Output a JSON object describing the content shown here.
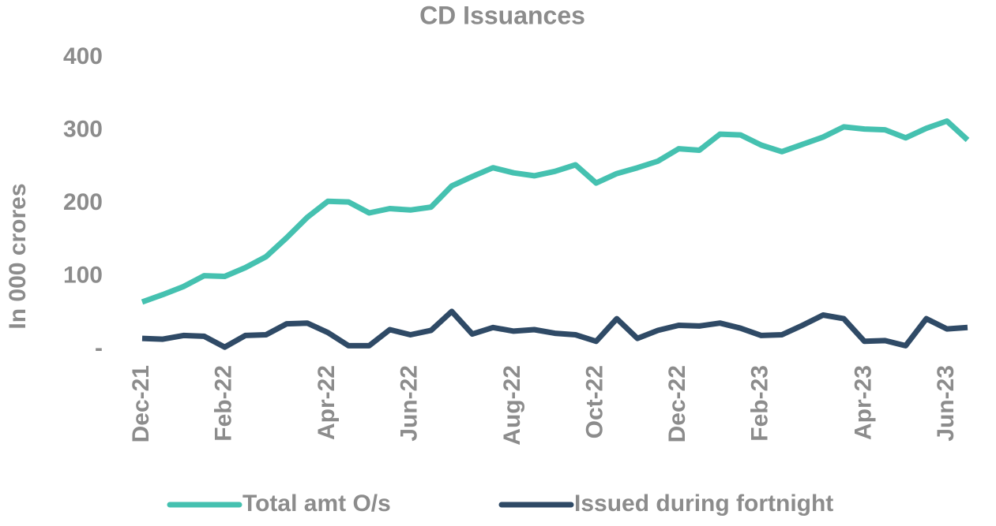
{
  "chart_data": {
    "type": "line",
    "title": "CD Issuances",
    "y_label": "In 000 crores",
    "categories": [
      "Dec-21",
      null,
      null,
      null,
      "Feb-22",
      null,
      null,
      null,
      null,
      "Apr-22",
      null,
      null,
      null,
      "Jun-22",
      null,
      null,
      null,
      null,
      "Aug-22",
      null,
      null,
      null,
      "Oct-22",
      null,
      null,
      null,
      "Dec-22",
      null,
      null,
      null,
      "Feb-23",
      null,
      null,
      null,
      null,
      "Apr-23",
      null,
      null,
      null,
      "Jun-23",
      null
    ],
    "series": [
      {
        "name": "Total amt O/s",
        "color": "#45c1b0",
        "values": [
          65,
          75,
          86,
          101,
          100,
          112,
          127,
          153,
          181,
          203,
          202,
          187,
          193,
          191,
          195,
          224,
          237,
          249,
          242,
          238,
          244,
          253,
          228,
          241,
          249,
          258,
          275,
          273,
          295,
          294,
          280,
          271,
          281,
          291,
          305,
          302,
          301,
          290,
          303,
          313,
          287
        ]
      },
      {
        "name": "Issued during fortnight",
        "color": "#2f4a66",
        "values": [
          15,
          14,
          19,
          18,
          3,
          19,
          20,
          35,
          36,
          23,
          5,
          5,
          27,
          20,
          26,
          52,
          21,
          30,
          25,
          27,
          22,
          20,
          11,
          42,
          15,
          26,
          33,
          32,
          36,
          29,
          19,
          20,
          33,
          47,
          42,
          11,
          12,
          5,
          42,
          28,
          30
        ]
      }
    ],
    "ylim": [
      0,
      400
    ],
    "yticks": [
      {
        "value": 0,
        "label": "-"
      },
      100,
      200,
      300,
      400
    ],
    "grid": false,
    "legend": "bottom"
  }
}
